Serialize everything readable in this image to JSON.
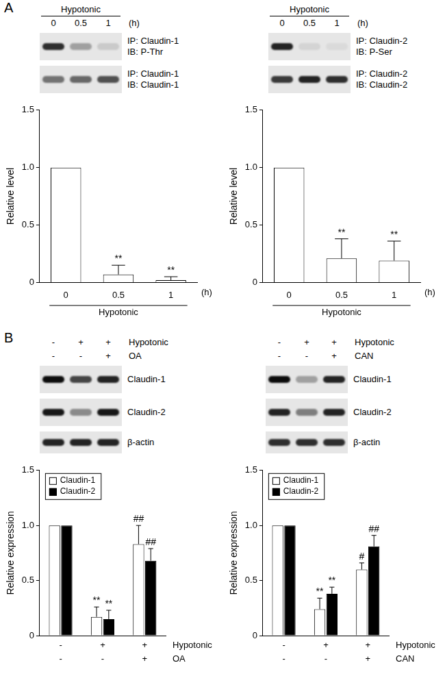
{
  "panel_letters": [
    "A",
    "B"
  ],
  "blots": [
    {
      "header": "Hypotonic",
      "lanes": [
        "0",
        "0.5",
        "1"
      ],
      "unit": "(h)",
      "strips": [
        {
          "label": [
            "IP: Claudin-1",
            "IB: P-Thr"
          ],
          "band_levels": [
            0.8,
            0.3,
            0.12
          ]
        },
        {
          "label": [
            "IP: Claudin-1",
            "IB: Claudin-1"
          ],
          "band_levels": [
            0.5,
            0.55,
            0.65
          ]
        }
      ]
    },
    {
      "header": "Hypotonic",
      "lanes": [
        "0",
        "0.5",
        "1"
      ],
      "unit": "(h)",
      "strips": [
        {
          "label": [
            "IP: Claudin-2",
            "IB: P-Ser"
          ],
          "band_levels": [
            0.85,
            0.08,
            0.05
          ]
        },
        {
          "label": [
            "IP: Claudin-2",
            "IB: Claudin-2"
          ],
          "band_levels": [
            0.75,
            0.85,
            0.8
          ]
        }
      ]
    },
    {
      "conditions": [
        {
          "label": "Hypotonic",
          "values": [
            "-",
            "+",
            "+"
          ]
        },
        {
          "label": "OA",
          "values": [
            "-",
            "-",
            "+"
          ]
        }
      ],
      "strips": [
        {
          "label": [
            "Claudin-1"
          ],
          "band_levels": [
            0.95,
            0.7,
            0.85
          ]
        },
        {
          "label": [
            "Claudin-2"
          ],
          "band_levels": [
            0.9,
            0.4,
            0.9
          ]
        },
        {
          "label": [
            "β-actin"
          ],
          "band_levels": [
            0.85,
            0.85,
            0.85
          ]
        }
      ]
    },
    {
      "conditions": [
        {
          "label": "Hypotonic",
          "values": [
            "-",
            "+",
            "+"
          ]
        },
        {
          "label": "CAN",
          "values": [
            "-",
            "-",
            "+"
          ]
        }
      ],
      "strips": [
        {
          "label": [
            "Claudin-1"
          ],
          "band_levels": [
            0.95,
            0.3,
            0.85
          ]
        },
        {
          "label": [
            "Claudin-2"
          ],
          "band_levels": [
            0.85,
            0.45,
            0.85
          ]
        },
        {
          "label": [
            "β-actin"
          ],
          "band_levels": [
            0.8,
            0.8,
            0.8
          ]
        }
      ]
    }
  ],
  "chart_data": [
    {
      "type": "bar",
      "categories": [
        "0",
        "0.5",
        "1"
      ],
      "x_unit": "(h)",
      "x_group_label": "Hypotonic",
      "y_label": "Relative level",
      "ylim": [
        0,
        1.5
      ],
      "yticks": [
        0,
        0.5,
        {
          "value": 1,
          "label": "1.0"
        },
        1.5
      ],
      "grid": false,
      "series": [
        {
          "color": "#ffffff",
          "values": [
            1,
            0.07,
            0.02
          ],
          "errors": [
            null,
            0.08,
            0.03
          ],
          "significance": [
            null,
            "**",
            "**"
          ]
        }
      ]
    },
    {
      "type": "bar",
      "categories": [
        "0",
        "0.5",
        "1"
      ],
      "x_unit": "(h)",
      "x_group_label": "Hypotonic",
      "y_label": "Relative level",
      "ylim": [
        0,
        1.5
      ],
      "yticks": [
        0,
        0.5,
        {
          "value": 1,
          "label": "1.0"
        },
        1.5
      ],
      "grid": false,
      "series": [
        {
          "color": "#ffffff",
          "values": [
            1,
            0.21,
            0.19
          ],
          "errors": [
            null,
            0.17,
            0.17
          ],
          "significance": [
            null,
            "**",
            "**"
          ]
        }
      ]
    },
    {
      "type": "bar",
      "categories": [
        null,
        null,
        null
      ],
      "conditions": [
        {
          "label": "Hypotonic",
          "values": [
            "-",
            "+",
            "+"
          ]
        },
        {
          "label": "OA",
          "values": [
            "-",
            "-",
            "+"
          ]
        }
      ],
      "y_label": "Relative expression",
      "ylim": [
        0,
        1.5
      ],
      "yticks": [
        0,
        0.5,
        {
          "value": 1,
          "label": "1.0"
        },
        1.5
      ],
      "grid": false,
      "legend": "upper left",
      "series": [
        {
          "name": "Claudin-1",
          "color": "#ffffff",
          "values": [
            1,
            0.17,
            0.83
          ],
          "errors": [
            null,
            0.09,
            0.17
          ],
          "significance": [
            null,
            "**",
            "##"
          ]
        },
        {
          "name": "Claudin-2",
          "color": "#000000",
          "values": [
            1,
            0.15,
            0.68
          ],
          "errors": [
            null,
            0.08,
            0.11
          ],
          "significance": [
            null,
            "**",
            "##"
          ]
        }
      ]
    },
    {
      "type": "bar",
      "categories": [
        null,
        null,
        null
      ],
      "conditions": [
        {
          "label": "Hypotonic",
          "values": [
            "-",
            "+",
            "+"
          ]
        },
        {
          "label": "CAN",
          "values": [
            "-",
            "-",
            "+"
          ]
        }
      ],
      "y_label": "Relative expression",
      "ylim": [
        0,
        1.5
      ],
      "yticks": [
        0,
        0.5,
        {
          "value": 1,
          "label": "1.0"
        },
        1.5
      ],
      "grid": false,
      "legend": "upper left",
      "series": [
        {
          "name": "Claudin-1",
          "color": "#ffffff",
          "values": [
            1,
            0.24,
            0.6
          ],
          "errors": [
            null,
            0.1,
            0.06
          ],
          "significance": [
            null,
            "**",
            "#"
          ]
        },
        {
          "name": "Claudin-2",
          "color": "#000000",
          "values": [
            1,
            0.38,
            0.81
          ],
          "errors": [
            null,
            0.06,
            0.1
          ],
          "significance": [
            null,
            "**",
            "##"
          ]
        }
      ]
    }
  ]
}
